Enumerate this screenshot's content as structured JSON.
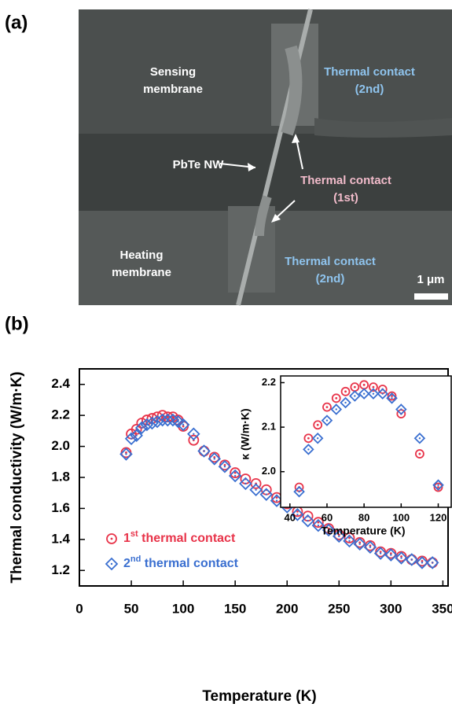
{
  "figure": {
    "panel_a_label": "(a)",
    "panel_b_label": "(b)",
    "image_labels": [
      {
        "lines": [
          "Sensing",
          "membrane"
        ]
      },
      {
        "lines": [
          "Thermal contact",
          "(2nd)"
        ]
      },
      {
        "lines": [
          "PbTe NW"
        ]
      },
      {
        "lines": [
          "Thermal contact",
          "(1st)"
        ]
      },
      {
        "lines": [
          "Heating",
          "membrane"
        ]
      },
      {
        "lines": [
          "Thermal contact",
          "(2nd)"
        ]
      },
      {
        "lines": [
          "1 μm"
        ]
      }
    ]
  },
  "chart_data": [
    {
      "type": "scatter",
      "x_label": "Temperature (K)",
      "y_label": "Thermal conductivity (W/m·K)",
      "x": [
        45,
        50,
        55,
        60,
        65,
        70,
        75,
        80,
        85,
        90,
        95,
        100,
        110,
        120,
        130,
        140,
        150,
        160,
        170,
        180,
        190,
        200,
        210,
        220,
        230,
        240,
        250,
        260,
        270,
        280,
        290,
        300,
        310,
        320,
        330,
        340
      ],
      "series": [
        {
          "name": "1st thermal contact",
          "color": "#e8344a",
          "marker": "circle",
          "values": [
            1.96,
            2.08,
            2.11,
            2.15,
            2.17,
            2.18,
            2.19,
            2.2,
            2.19,
            2.19,
            2.17,
            2.13,
            2.04,
            1.97,
            1.93,
            1.88,
            1.83,
            1.79,
            1.76,
            1.72,
            1.67,
            1.63,
            1.58,
            1.55,
            1.51,
            1.47,
            1.43,
            1.41,
            1.38,
            1.36,
            1.32,
            1.31,
            1.29,
            1.27,
            1.26,
            1.25
          ]
        },
        {
          "name": "2nd thermal contact",
          "color": "#3a6fd0",
          "marker": "diamond",
          "values": [
            1.95,
            2.05,
            2.07,
            2.12,
            2.14,
            2.15,
            2.16,
            2.17,
            2.17,
            2.17,
            2.16,
            2.14,
            2.08,
            1.97,
            1.92,
            1.87,
            1.81,
            1.76,
            1.72,
            1.69,
            1.65,
            1.61,
            1.56,
            1.52,
            1.49,
            1.46,
            1.42,
            1.39,
            1.37,
            1.35,
            1.31,
            1.3,
            1.28,
            1.27,
            1.25,
            1.25
          ]
        }
      ],
      "xlim": [
        0,
        355
      ],
      "xticks": [
        0,
        50,
        100,
        150,
        200,
        250,
        300,
        350
      ],
      "ylim": [
        1.1,
        2.5
      ],
      "yticks": [
        1.2,
        1.4,
        1.6,
        1.8,
        {
          "value": 2,
          "label": "2.0"
        },
        2.2,
        2.4
      ],
      "legend": "lower left"
    },
    {
      "type": "scatter",
      "x_label": "Temperature (K)",
      "y_label": "κ (W/m·K)",
      "x": [
        45,
        50,
        55,
        60,
        65,
        70,
        75,
        80,
        85,
        90,
        95,
        100,
        110,
        120
      ],
      "series": [
        {
          "color": "#e8344a",
          "marker": "circle",
          "values": [
            1.965,
            2.075,
            2.105,
            2.145,
            2.165,
            2.18,
            2.19,
            2.195,
            2.19,
            2.185,
            2.17,
            2.13,
            2.04,
            1.965
          ]
        },
        {
          "color": "#3a6fd0",
          "marker": "diamond",
          "values": [
            1.955,
            2.05,
            2.075,
            2.115,
            2.14,
            2.155,
            2.17,
            2.175,
            2.175,
            2.175,
            2.165,
            2.14,
            2.075,
            1.97
          ]
        }
      ],
      "xlim": [
        35,
        127
      ],
      "xticks": [
        40,
        60,
        80,
        100,
        120
      ],
      "ylim": [
        1.92,
        2.215
      ],
      "yticks": [
        {
          "value": 2,
          "label": "2.0"
        },
        2.1,
        2.2
      ]
    }
  ]
}
